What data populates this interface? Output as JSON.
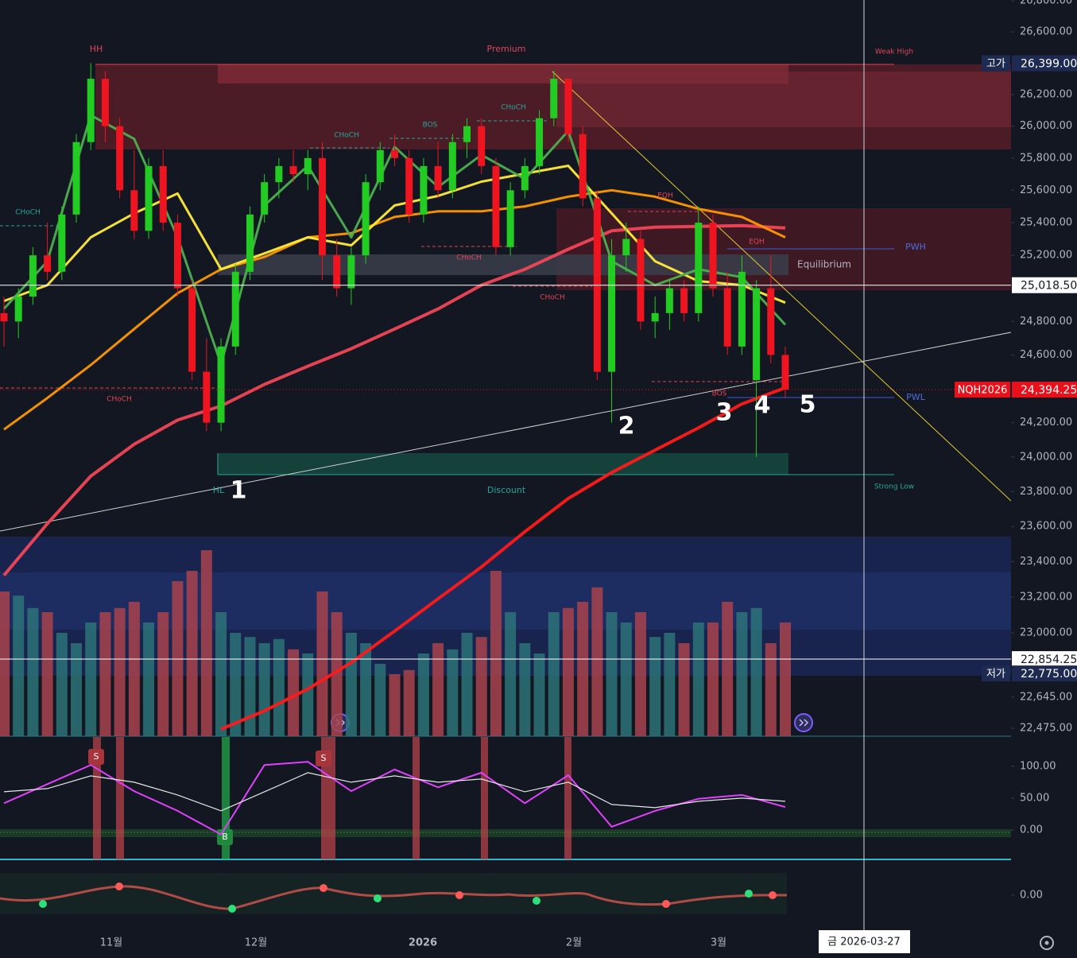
{
  "chart_data": {
    "type": "candlestick",
    "log_scale": true,
    "ylim": [
      22432,
      26806
    ],
    "yticks": [
      {
        "value": 26800,
        "label": "26,800.00"
      },
      {
        "value": 26600,
        "label": "26,600.00"
      },
      {
        "value": 26200,
        "label": "26,200.00"
      },
      {
        "value": 26000,
        "label": "26,000.00"
      },
      {
        "value": 25800,
        "label": "25,800.00"
      },
      {
        "value": 25600,
        "label": "25,600.00"
      },
      {
        "value": 25400,
        "label": "25,400.00"
      },
      {
        "value": 25200,
        "label": "25,200.00"
      },
      {
        "value": 24800,
        "label": "24,800.00"
      },
      {
        "value": 24600,
        "label": "24,600.00"
      },
      {
        "value": 24200,
        "label": "24,200.00"
      },
      {
        "value": 24000,
        "label": "24,000.00"
      },
      {
        "value": 23800,
        "label": "23,800.00"
      },
      {
        "value": 23600,
        "label": "23,600.00"
      },
      {
        "value": 23400,
        "label": "23,400.00"
      },
      {
        "value": 23200,
        "label": "23,200.00"
      },
      {
        "value": 23000,
        "label": "23,000.00"
      },
      {
        "value": 22645,
        "label": "22,645.00"
      },
      {
        "value": 22475,
        "label": "22,475.00"
      }
    ],
    "up_color": "#22cc22",
    "down_color": "#ee1520",
    "open": [
      24850,
      24800,
      24950,
      25200,
      25100,
      25450,
      25900,
      26300,
      26000,
      25600,
      25350,
      25750,
      25400,
      25000,
      24500,
      24200,
      24650,
      25100,
      25450,
      25650,
      25750,
      25700,
      25800,
      25200,
      25000,
      25200,
      25650,
      25850,
      25800,
      25450,
      25750,
      25600,
      25900,
      26000,
      25750,
      25250,
      25600,
      25750,
      26050,
      26300,
      25950,
      25550,
      24500,
      25200,
      25300,
      24800,
      24850,
      25000,
      24850,
      25400,
      25000,
      24650,
      24450,
      25000,
      24600
    ],
    "high": [
      24950,
      25000,
      25250,
      25400,
      25500,
      25950,
      26400,
      26350,
      26050,
      25850,
      25800,
      25850,
      25450,
      25050,
      24700,
      24700,
      25150,
      25500,
      25700,
      25800,
      25850,
      25850,
      25900,
      25300,
      25250,
      25700,
      25900,
      25950,
      25850,
      25800,
      25900,
      25950,
      26050,
      26050,
      25800,
      25650,
      25800,
      26100,
      26350,
      26300,
      26000,
      25600,
      25300,
      25400,
      25350,
      24950,
      25050,
      25050,
      25500,
      25450,
      25100,
      25200,
      25050,
      25200,
      24650
    ],
    "low": [
      24650,
      24700,
      24900,
      25050,
      25050,
      25400,
      25850,
      25900,
      25550,
      25300,
      25300,
      25350,
      24950,
      24450,
      24150,
      24150,
      24600,
      25050,
      25400,
      25550,
      25650,
      25600,
      25050,
      24950,
      24900,
      25150,
      25600,
      25750,
      25400,
      25400,
      25550,
      25550,
      25800,
      25700,
      25200,
      25200,
      25550,
      25700,
      26000,
      25900,
      25500,
      24450,
      24200,
      25100,
      24750,
      24700,
      24750,
      24800,
      24800,
      24950,
      24600,
      24600,
      24000,
      24550,
      24350
    ],
    "close": [
      24800,
      24950,
      25200,
      25100,
      25450,
      25900,
      26300,
      26000,
      25600,
      25350,
      25750,
      25400,
      25000,
      24500,
      24200,
      24650,
      25100,
      25450,
      25650,
      25750,
      25700,
      25800,
      25200,
      25000,
      25200,
      25650,
      25850,
      25800,
      25450,
      25750,
      25600,
      25900,
      26000,
      25750,
      25250,
      25600,
      25750,
      26050,
      26300,
      25950,
      25550,
      24500,
      25200,
      25300,
      24800,
      24850,
      25000,
      24850,
      25400,
      25000,
      24650,
      25100,
      25000,
      24600,
      24394.25
    ],
    "overlays": [
      {
        "color": "#f04656",
        "values": [
          23322,
          23616,
          23889,
          24074,
          24215,
          24298,
          24425,
          24533,
          24637,
          24755,
          24875,
          25019,
          25115,
          25237,
          25350,
          25372,
          25377,
          25382,
          25367
        ]
      },
      {
        "color": "#ff1a1a",
        "values": [
          null,
          null,
          null,
          null,
          null,
          22470,
          22570,
          22690,
          22835,
          23010,
          23190,
          23370,
          23570,
          23760,
          23910,
          24040,
          24170,
          24310,
          24405
        ]
      },
      {
        "color": "#ff9800",
        "values": [
          24160,
          24345,
          24540,
          24755,
          24970,
          25115,
          25190,
          25310,
          25335,
          25435,
          25470,
          25470,
          25500,
          25560,
          25600,
          25560,
          25485,
          25435,
          25310
        ]
      },
      {
        "color": "#ffeb3b",
        "values": [
          24923,
          25019,
          25310,
          25457,
          25580,
          25115,
          25212,
          25310,
          25261,
          25506,
          25565,
          25653,
          25703,
          25752,
          25457,
          25164,
          25043,
          25019,
          24913
        ]
      },
      {
        "color": "#4caf50",
        "values": [
          24876,
          25164,
          26069,
          25920,
          25310,
          24545,
          25506,
          25752,
          25310,
          25870,
          25620,
          25820,
          25670,
          25970,
          25164,
          25019,
          25115,
          25067,
          24780
        ]
      }
    ],
    "volume_ylim": [
      0,
      100
    ],
    "volume": [
      70,
      68,
      62,
      60,
      50,
      45,
      55,
      60,
      62,
      65,
      55,
      60,
      75,
      80,
      90,
      60,
      50,
      48,
      45,
      47,
      42,
      40,
      70,
      60,
      50,
      45,
      35,
      30,
      32,
      40,
      45,
      42,
      50,
      48,
      80,
      60,
      45,
      40,
      60,
      62,
      65,
      72,
      60,
      55,
      60,
      48,
      50,
      45,
      55,
      55,
      65,
      60,
      62,
      45,
      55
    ],
    "price_lines": [
      {
        "name": "고가",
        "value": 26399,
        "label": "26,399.00",
        "bg": "#1e2a52",
        "fg": "#ffffff"
      },
      {
        "value": 25018.5,
        "label": "25,018.50",
        "bg": "#ffffff",
        "fg": "#131722"
      },
      {
        "name": "NQH2026",
        "value": 24394.25,
        "label": "24,394.25",
        "bg": "#e8101a",
        "fg": "#ffffff"
      },
      {
        "value": 22854.25,
        "label": "22,854.25",
        "bg": "#ffffff",
        "fg": "#131722"
      },
      {
        "name": "저가",
        "value": 22775,
        "label": "22,775.00",
        "bg": "#1e2a52",
        "fg": "#ffffff"
      }
    ],
    "x_labels": [
      "11월",
      "12월",
      "2026",
      "2월",
      "3월"
    ],
    "crosshair_label": "금 2026-03-27",
    "annotations": [
      "HH",
      "Premium",
      "Weak High",
      "CHoCH",
      "CHoCH",
      "BOS",
      "CHoCH",
      "CHoCH",
      "CHoCH",
      "CHoCH",
      "EQH",
      "EQH",
      "BOS",
      "Equilibrium",
      "PWH",
      "PWL",
      "Discount",
      "Strong Low",
      "HL",
      "1",
      "2",
      "3",
      "4",
      "5",
      "S",
      "S",
      "B"
    ],
    "oscillator": {
      "ylim": [
        -45,
        146
      ],
      "yticks": [
        {
          "value": 100,
          "label": "100.00"
        },
        {
          "value": 50,
          "label": "50.00"
        },
        {
          "value": 0,
          "label": "0.00"
        }
      ],
      "series": [
        {
          "color": "#e040fb",
          "values": [
            42,
            72,
            102,
            61,
            30,
            -7,
            102,
            107,
            61,
            95,
            67,
            90,
            42,
            86,
            5,
            30,
            49,
            55,
            36
          ]
        },
        {
          "color": "#e6e6e6",
          "values": [
            60,
            65,
            85,
            75,
            55,
            30,
            60,
            90,
            75,
            85,
            75,
            80,
            60,
            75,
            40,
            35,
            45,
            50,
            45
          ]
        }
      ]
    },
    "lower": {
      "ylim": [
        -35,
        45
      ],
      "yticks": [
        {
          "value": 0,
          "label": "0.00"
        }
      ]
    }
  }
}
